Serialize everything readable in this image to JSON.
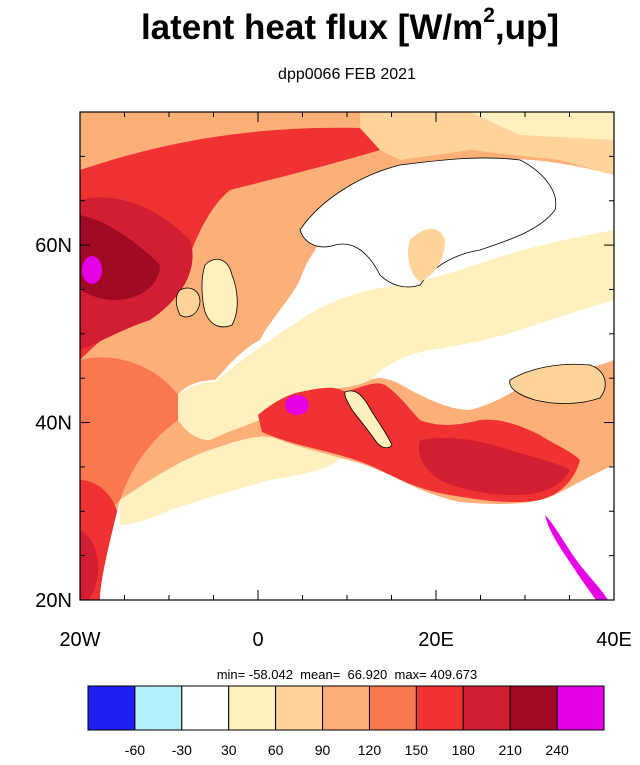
{
  "title": {
    "main": "latent heat flux [W/m",
    "sup": "2",
    "tail": ",up]"
  },
  "subtitle": "dpp0066 FEB 2021",
  "stats": {
    "text": "min= -58.042  mean=  66.920  max= 409.673"
  },
  "map": {
    "lon_ticks": [
      {
        "value": -20,
        "label": "20W"
      },
      {
        "value": 0,
        "label": "0"
      },
      {
        "value": 20,
        "label": "20E"
      },
      {
        "value": 40,
        "label": "40E"
      }
    ],
    "lat_ticks": [
      {
        "value": 20,
        "label": "20N"
      },
      {
        "value": 40,
        "label": "40N"
      },
      {
        "value": 60,
        "label": "60N"
      }
    ],
    "lon_range": [
      -20,
      40
    ],
    "lat_range": [
      20,
      75
    ]
  },
  "colorbar": {
    "colors": [
      "#1e1ef0",
      "#b4f0fa",
      "#ffffff",
      "#fff0be",
      "#fed49b",
      "#fdaf78",
      "#fa7850",
      "#f03232",
      "#d21e32",
      "#a00a23",
      "#e600e6"
    ],
    "labels": [
      "-60",
      "-30",
      "30",
      "60",
      "90",
      "120",
      "150",
      "180",
      "210",
      "240"
    ]
  }
}
